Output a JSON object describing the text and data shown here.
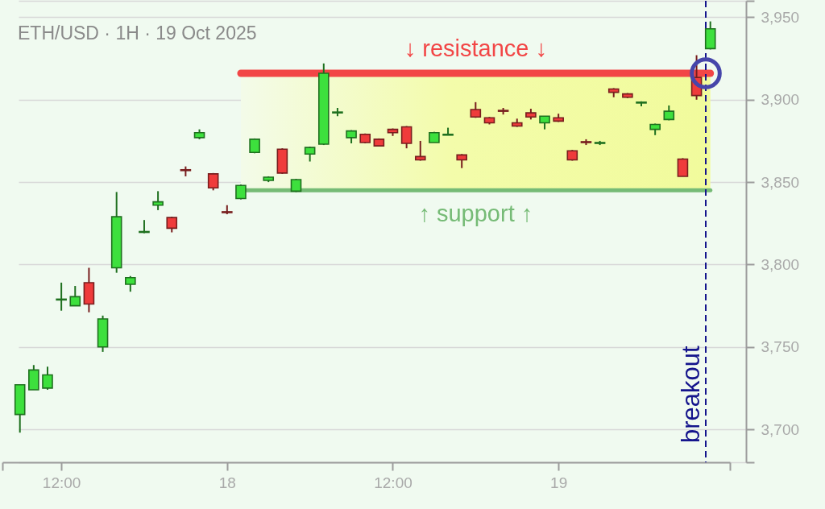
{
  "chart_data": {
    "type": "candlestick",
    "title": "ETH/USD · 1H · 19 Oct 2025",
    "x": [
      "2025-10-17T09:00",
      "2025-10-17T10:00",
      "2025-10-17T11:00",
      "2025-10-17T12:00",
      "2025-10-17T13:00",
      "2025-10-17T14:00",
      "2025-10-17T15:00",
      "2025-10-17T16:00",
      "2025-10-17T17:00",
      "2025-10-17T18:00",
      "2025-10-17T19:00",
      "2025-10-17T20:00",
      "2025-10-17T21:00",
      "2025-10-17T22:00",
      "2025-10-17T23:00",
      "2025-10-18T00:00",
      "2025-10-18T01:00",
      "2025-10-18T02:00",
      "2025-10-18T03:00",
      "2025-10-18T04:00",
      "2025-10-18T05:00",
      "2025-10-18T06:00",
      "2025-10-18T07:00",
      "2025-10-18T08:00",
      "2025-10-18T09:00",
      "2025-10-18T10:00",
      "2025-10-18T11:00",
      "2025-10-18T12:00",
      "2025-10-18T13:00",
      "2025-10-18T14:00",
      "2025-10-18T15:00",
      "2025-10-18T16:00",
      "2025-10-18T17:00",
      "2025-10-18T18:00",
      "2025-10-18T19:00",
      "2025-10-18T20:00",
      "2025-10-18T21:00",
      "2025-10-18T22:00",
      "2025-10-18T23:00",
      "2025-10-19T00:00",
      "2025-10-19T01:00",
      "2025-10-19T02:00",
      "2025-10-19T03:00",
      "2025-10-19T04:00",
      "2025-10-19T05:00",
      "2025-10-19T06:00",
      "2025-10-19T07:00",
      "2025-10-19T08:00",
      "2025-10-19T09:00",
      "2025-10-19T10:00",
      "2025-10-19T11:00"
    ],
    "ohlc": [
      [
        3709,
        3727,
        3698,
        3727
      ],
      [
        3724,
        3739,
        3724,
        3736
      ],
      [
        3725,
        3738,
        3724,
        3733
      ],
      [
        3778.5,
        3789,
        3772,
        3779
      ],
      [
        3775,
        3787,
        3775,
        3780.5
      ],
      [
        3789,
        3798,
        3771,
        3776
      ],
      [
        3750,
        3769,
        3747,
        3767
      ],
      [
        3798,
        3844,
        3795,
        3829
      ],
      [
        3788,
        3793,
        3783.5,
        3792
      ],
      [
        3819.5,
        3827,
        3819,
        3820
      ],
      [
        3836,
        3844.5,
        3833,
        3838
      ],
      [
        3828.5,
        3829,
        3819.5,
        3822
      ],
      [
        3857.5,
        3859.5,
        3853.5,
        3857
      ],
      [
        3877,
        3882,
        3876,
        3880
      ],
      [
        3855,
        3855.5,
        3845,
        3846.5
      ],
      [
        3832,
        3836,
        3830.5,
        3831.5
      ],
      [
        3840,
        3848.5,
        3839.5,
        3848
      ],
      [
        3868,
        3876.5,
        3867.5,
        3876
      ],
      [
        3851,
        3853.5,
        3850,
        3853
      ],
      [
        3870,
        3870.5,
        3855,
        3855.5
      ],
      [
        3844.5,
        3852,
        3844,
        3851.5
      ],
      [
        3867,
        3871.5,
        3862.5,
        3871
      ],
      [
        3873,
        3922,
        3872.5,
        3916
      ],
      [
        3892,
        3895,
        3890,
        3892.5
      ],
      [
        3877,
        3881.5,
        3873.5,
        3881
      ],
      [
        3879,
        3879.5,
        3873.5,
        3874
      ],
      [
        3876,
        3876.5,
        3872,
        3872
      ],
      [
        3882,
        3882.5,
        3878,
        3880
      ],
      [
        3883.5,
        3884,
        3870.5,
        3873.5
      ],
      [
        3865.5,
        3875,
        3863,
        3863.5
      ],
      [
        3874,
        3880.5,
        3874,
        3880
      ],
      [
        3878.5,
        3883,
        3878.5,
        3879
      ],
      [
        3866.5,
        3867,
        3858.5,
        3863.5
      ],
      [
        3894,
        3898.5,
        3889,
        3889.5
      ],
      [
        3889,
        3889.5,
        3885,
        3886
      ],
      [
        3893.5,
        3895,
        3891,
        3893
      ],
      [
        3886,
        3888.5,
        3883.5,
        3884
      ],
      [
        3892,
        3894.5,
        3888,
        3889.5
      ],
      [
        3886,
        3890,
        3882,
        3890
      ],
      [
        3889,
        3891.5,
        3886.5,
        3887
      ],
      [
        3869,
        3869.5,
        3863,
        3863.5
      ],
      [
        3874.5,
        3876,
        3872.5,
        3874
      ],
      [
        3873.5,
        3875,
        3872.5,
        3874
      ],
      [
        3906.5,
        3907,
        3901.5,
        3904.5
      ],
      [
        3903.5,
        3904,
        3901,
        3901.5
      ],
      [
        3898,
        3899,
        3896,
        3898.5
      ],
      [
        3882,
        3885.5,
        3878.5,
        3885
      ],
      [
        3888,
        3896.5,
        3887.5,
        3893
      ],
      [
        3864,
        3864.5,
        3853.5,
        3853.5
      ],
      [
        3913.5,
        3927,
        3900,
        3902.5
      ],
      [
        3931,
        3947.5,
        3930.5,
        3943
      ]
    ],
    "colors": [
      "#3de03d",
      "#3de03d",
      "#3de03d",
      "#3de03d",
      "#3de03d",
      "#ef3b3b",
      "#3de03d",
      "#3de03d",
      "#3de03d",
      "#3de03d",
      "#3de03d",
      "#ef3b3b",
      "#ef3b3b",
      "#3de03d",
      "#ef3b3b",
      "#ef3b3b",
      "#3de03d",
      "#3de03d",
      "#3de03d",
      "#ef3b3b",
      "#3de03d",
      "#3de03d",
      "#3de03d",
      "#3de03d",
      "#3de03d",
      "#ef3b3b",
      "#ef3b3b",
      "#ef3b3b",
      "#ef3b3b",
      "#ef3b3b",
      "#3de03d",
      "#3de03d",
      "#ef3b3b",
      "#ef3b3b",
      "#ef3b3b",
      "#ef3b3b",
      "#ef3b3b",
      "#ef3b3b",
      "#3de03d",
      "#ef3b3b",
      "#ef3b3b",
      "#ef3b3b",
      "#3de03d",
      "#ef3b3b",
      "#ef3b3b",
      "#3de03d",
      "#3de03d",
      "#3de03d",
      "#ef3b3b",
      "#ef3b3b",
      "#3de03d"
    ],
    "series": [
      {
        "type": "line",
        "name": "↓ resistance ↓",
        "color": "#f24646",
        "x": [
          "2025-10-18T01:00",
          "2025-10-19T11:00"
        ],
        "values": [
          3916,
          3916
        ],
        "lower": [
          3845,
          3845
        ],
        "upper": [
          3916,
          3916
        ]
      },
      {
        "type": "line",
        "name": "↑ support ↑",
        "color": "#76bb76",
        "x": [
          "2025-10-18T01:00",
          "2025-10-19T11:00"
        ],
        "values": [
          3845,
          3845
        ]
      }
    ],
    "ref_lines": [
      {
        "axis": "x",
        "value": "2025-10-19T10:40",
        "label": "breakout",
        "color": "#14148c",
        "line_style": "dashed"
      }
    ],
    "xlim": [
      "2025-10-17T07:44",
      "2025-10-19T12:25"
    ],
    "xticks": [
      {
        "value": "2025-10-17T07:44",
        "label": null
      },
      {
        "value": "2025-10-17T12:00",
        "label": "12:00"
      },
      {
        "value": "2025-10-18T00:00",
        "label": "18"
      },
      {
        "value": "2025-10-18T12:00",
        "label": "12:00"
      },
      {
        "value": "2025-10-19T00:00",
        "label": "19"
      },
      {
        "value": "2025-10-19T12:25",
        "label": null
      }
    ],
    "ylim": [
      3680,
      3960
    ],
    "yticks": [
      {
        "value": 3680,
        "label": null
      },
      {
        "value": 3700,
        "label": "3,700"
      },
      {
        "value": 3750,
        "label": "3,750"
      },
      {
        "value": 3800,
        "label": "3,800"
      },
      {
        "value": 3850,
        "label": "3,850"
      },
      {
        "value": 3900,
        "label": "3,900"
      },
      {
        "value": 3950,
        "label": "3,950"
      },
      {
        "value": 3960,
        "label": null
      }
    ],
    "grid": "y"
  }
}
